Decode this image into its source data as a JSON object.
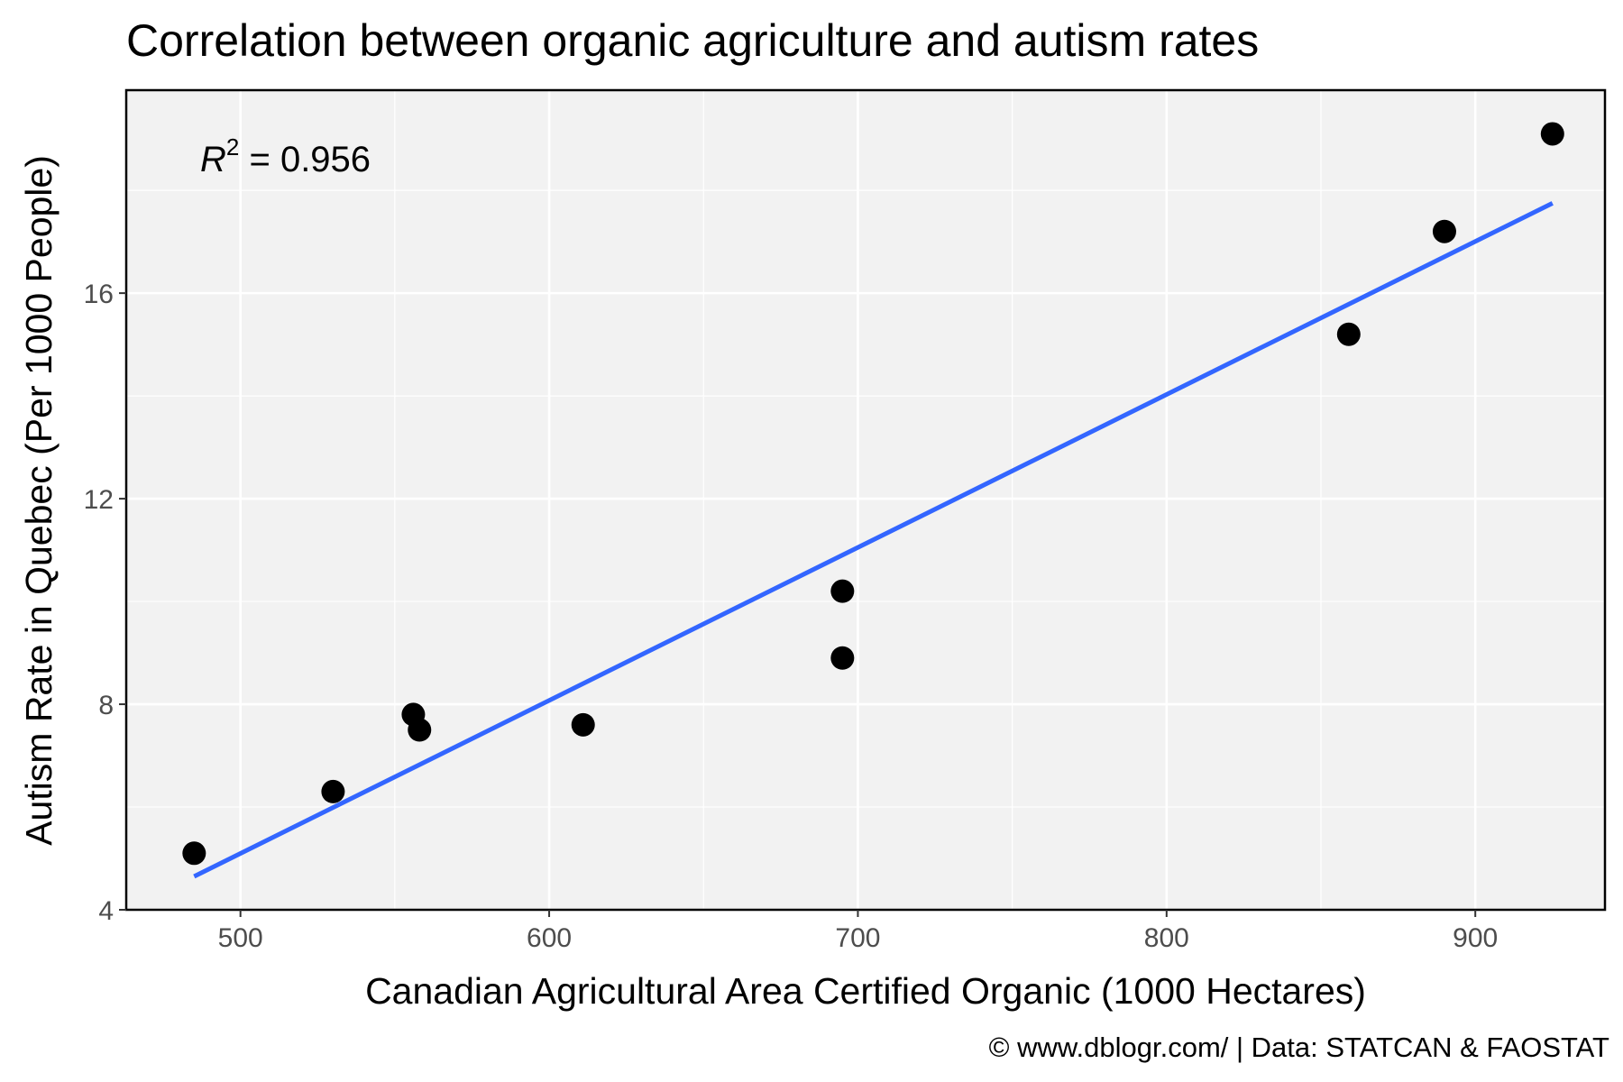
{
  "chart_data": {
    "type": "scatter",
    "title": "Correlation between organic agriculture and autism rates",
    "xlabel": "Canadian Agricultural Area Certified Organic (1000 Hectares)",
    "ylabel": "Autism Rate in Quebec (Per 1000 People)",
    "caption": "© www.dblogr.com/  |  Data: STATCAN & FAOSTAT",
    "annotation": {
      "r_symbol": "R",
      "r_exponent": "2",
      "r_value_text": " = 0.956"
    },
    "xlim": [
      463,
      942
    ],
    "ylim": [
      4,
      19.95
    ],
    "x_ticks": [
      500,
      600,
      700,
      800,
      900
    ],
    "x_minor_ticks": [
      550,
      650,
      750,
      850
    ],
    "y_ticks": [
      4,
      8,
      12,
      16
    ],
    "y_minor_ticks": [
      6,
      10,
      14,
      18
    ],
    "grid": true,
    "points": [
      {
        "x": 485,
        "y": 5.1
      },
      {
        "x": 530,
        "y": 6.3
      },
      {
        "x": 556,
        "y": 7.8
      },
      {
        "x": 558,
        "y": 7.5
      },
      {
        "x": 611,
        "y": 7.6
      },
      {
        "x": 695,
        "y": 10.2
      },
      {
        "x": 695,
        "y": 8.9
      },
      {
        "x": 859,
        "y": 15.2
      },
      {
        "x": 890,
        "y": 17.2
      },
      {
        "x": 925,
        "y": 19.1
      }
    ],
    "trendline": {
      "type": "linear fit",
      "x_start": 485,
      "x_end": 925,
      "y_start": 4.65,
      "y_end": 17.75
    },
    "colors": {
      "panel_background": "#f2f2f2",
      "grid": "#ffffff",
      "points": "#000000",
      "trendline": "#3366ff",
      "tick_labels": "#4d4d4d"
    }
  }
}
